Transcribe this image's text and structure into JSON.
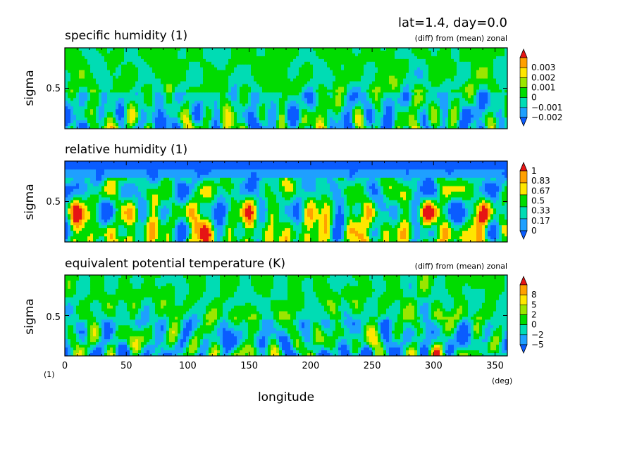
{
  "header": {
    "label": "lat=1.4, day=0.0"
  },
  "units": {
    "sigma": "(1)",
    "longitude": "(deg)"
  },
  "chart_data": [
    {
      "type": "heatmap",
      "title": "specific humidity (1)",
      "subtitle": "(diff) from (mean) zonal",
      "xlabel": "longitude",
      "ylabel": "sigma",
      "xlim": [
        0,
        360
      ],
      "ylim": [
        0,
        1
      ],
      "xticks": [
        "0",
        "50",
        "100",
        "150",
        "200",
        "250",
        "300",
        "350"
      ],
      "yticks": [
        "0.5"
      ],
      "colorbar": {
        "labels": [
          "0.003",
          "0.002",
          "0.001",
          "0",
          "−0.001",
          "−0.002"
        ],
        "colors": [
          "#0a5cff",
          "#1ea0ff",
          "#00dcb4",
          "#00dc00",
          "#9be600",
          "#ffe600",
          "#ffa000",
          "#e61414"
        ]
      }
    },
    {
      "type": "heatmap",
      "title": "relative humidity (1)",
      "xlabel": "longitude",
      "ylabel": "sigma",
      "xlim": [
        0,
        360
      ],
      "ylim": [
        0,
        1
      ],
      "yticks": [
        "0.5"
      ],
      "colorbar": {
        "labels": [
          "1",
          "0.83",
          "0.67",
          "0.5",
          "0.33",
          "0.17",
          "0"
        ],
        "colors": [
          "#0a5cff",
          "#1ea0ff",
          "#00dcb4",
          "#00dc00",
          "#ffe600",
          "#ffa000",
          "#e61414"
        ]
      }
    },
    {
      "type": "heatmap",
      "title": "equivalent potential temperature (K)",
      "subtitle": "(diff) from (mean) zonal",
      "xlabel": "longitude",
      "ylabel": "sigma",
      "xlim": [
        0,
        360
      ],
      "ylim": [
        0,
        1
      ],
      "yticks": [
        "0.5"
      ],
      "colorbar": {
        "labels": [
          "8",
          "5",
          "2",
          "0",
          "−2",
          "−5"
        ],
        "colors": [
          "#0a5cff",
          "#1ea0ff",
          "#00dcb4",
          "#00dc00",
          "#9be600",
          "#ffe600",
          "#ffa000",
          "#e61414"
        ]
      }
    }
  ]
}
